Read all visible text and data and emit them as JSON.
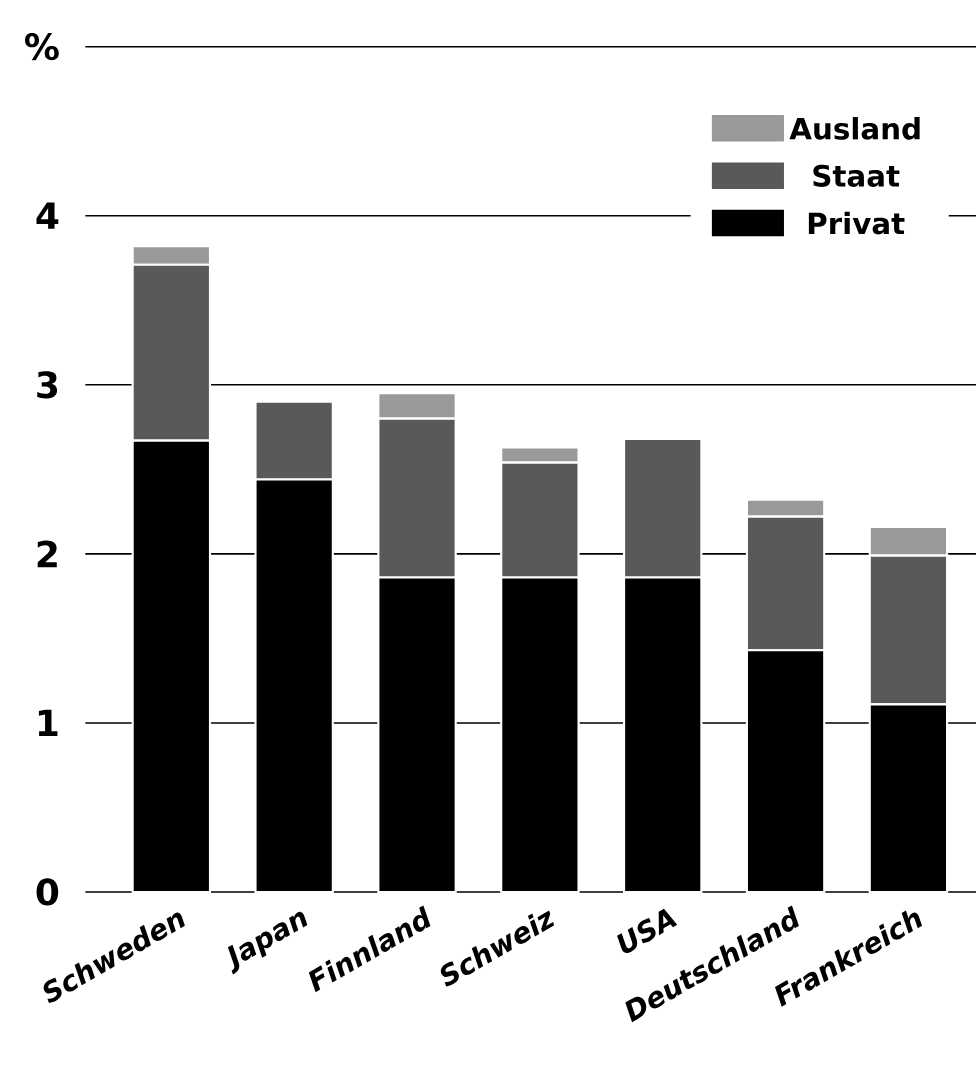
{
  "chart_data": {
    "type": "bar",
    "stacked": true,
    "categories": [
      "Schweden",
      "Japan",
      "Finnland",
      "Schweiz",
      "USA",
      "Deutschland",
      "Frankreich"
    ],
    "series": [
      {
        "name": "Privat",
        "color": "#000000",
        "values": [
          2.67,
          2.44,
          1.86,
          1.86,
          1.86,
          1.43,
          1.11
        ]
      },
      {
        "name": "Staat",
        "color": "#595959",
        "values": [
          1.04,
          0.46,
          0.94,
          0.68,
          0.82,
          0.79,
          0.88
        ]
      },
      {
        "name": "Ausland",
        "color": "#999999",
        "values": [
          0.11,
          0,
          0.15,
          0.09,
          0,
          0.1,
          0.17
        ]
      }
    ],
    "ylim": [
      0,
      5
    ],
    "yticks": [
      0,
      1,
      2,
      3,
      4,
      {
        "value": 5,
        "label": "%"
      }
    ],
    "grid": "y",
    "legend": "top right"
  }
}
